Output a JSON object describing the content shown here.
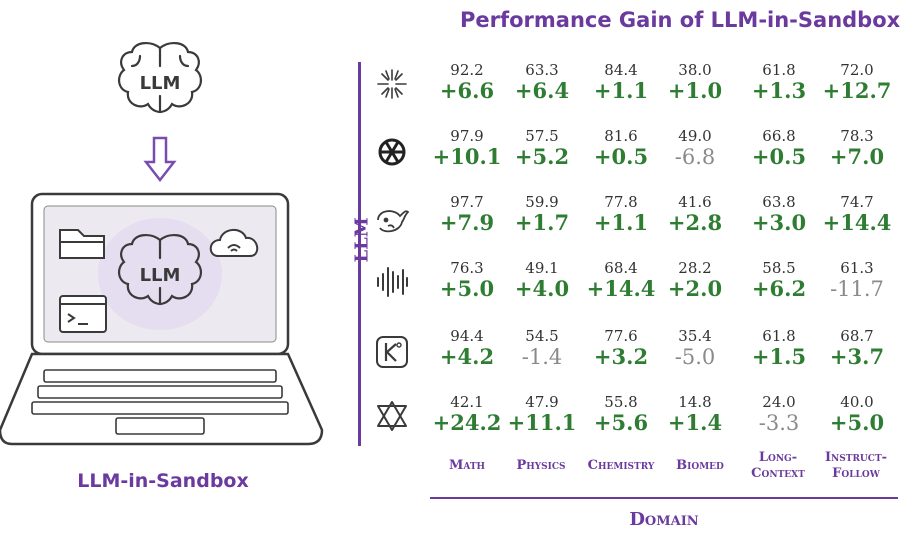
{
  "title": "Performance Gain of LLM-in-Sandbox",
  "left_caption": "LLM-in-Sandbox",
  "brain_top_label": "LLM",
  "brain_screen_label": "LLM",
  "y_axis_label": "LLM",
  "x_axis_label": "Domain",
  "domains": [
    "Math",
    "Physics",
    "Chemistry",
    "Biomed",
    "Long-Context",
    "Instruct-Follow"
  ],
  "models": [
    {
      "icon": "starburst-logo-icon",
      "base": [
        "92.2",
        "63.3",
        "84.4",
        "38.0",
        "61.8",
        "72.0"
      ],
      "gain": [
        "+6.6",
        "+6.4",
        "+1.1",
        "+1.0",
        "+1.3",
        "+12.7"
      ]
    },
    {
      "icon": "openai-knot-logo-icon",
      "base": [
        "97.9",
        "57.5",
        "81.6",
        "49.0",
        "66.8",
        "78.3"
      ],
      "gain": [
        "+10.1",
        "+5.2",
        "+0.5",
        "-6.8",
        "+0.5",
        "+7.0"
      ]
    },
    {
      "icon": "whale-logo-icon",
      "base": [
        "97.7",
        "59.9",
        "77.8",
        "41.6",
        "63.8",
        "74.7"
      ],
      "gain": [
        "+7.9",
        "+1.7",
        "+1.1",
        "+2.8",
        "+3.0",
        "+14.4"
      ]
    },
    {
      "icon": "soundwave-logo-icon",
      "base": [
        "76.3",
        "49.1",
        "68.4",
        "28.2",
        "58.5",
        "61.3"
      ],
      "gain": [
        "+5.0",
        "+4.0",
        "+14.4",
        "+2.0",
        "+6.2",
        "-11.7"
      ]
    },
    {
      "icon": "k-box-logo-icon",
      "base": [
        "94.4",
        "54.5",
        "77.6",
        "35.4",
        "61.8",
        "68.7"
      ],
      "gain": [
        "+4.2",
        "-1.4",
        "+3.2",
        "-5.0",
        "+1.5",
        "+3.7"
      ]
    },
    {
      "icon": "interlaced-triangle-logo-icon",
      "base": [
        "42.1",
        "47.9",
        "55.8",
        "14.8",
        "24.0",
        "40.0"
      ],
      "gain": [
        "+24.2",
        "+11.1",
        "+5.6",
        "+1.4",
        "-3.3",
        "+5.0"
      ]
    }
  ],
  "colors": {
    "accent": "#6a3a9e",
    "positive": "#2e7d32",
    "negative": "#8a8a8a"
  }
}
